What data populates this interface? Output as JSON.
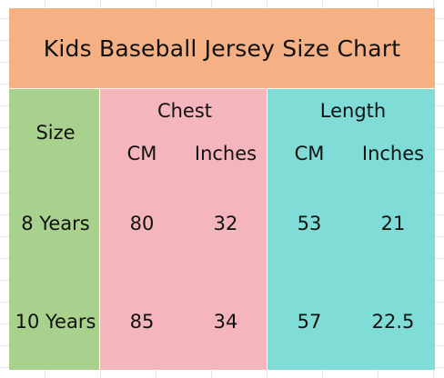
{
  "title": "Kids Baseball Jersey Size Chart",
  "colors": {
    "title_bg": "#f5b083",
    "size_column_bg": "#a9d18e",
    "chest_group_bg": "#f4b5bd",
    "length_group_bg": "#7fdcd6"
  },
  "header": {
    "size": "Size",
    "chest": "Chest",
    "length": "Length",
    "chest_cm": "CM",
    "chest_inches": "Inches",
    "length_cm": "CM",
    "length_inches": "Inches"
  },
  "rows": [
    {
      "size": "8 Years",
      "chest_cm": "80",
      "chest_inches": "32",
      "length_cm": "53",
      "length_inches": "21"
    },
    {
      "size": "10 Years",
      "chest_cm": "85",
      "chest_inches": "34",
      "length_cm": "57",
      "length_inches": "22.5"
    }
  ]
}
